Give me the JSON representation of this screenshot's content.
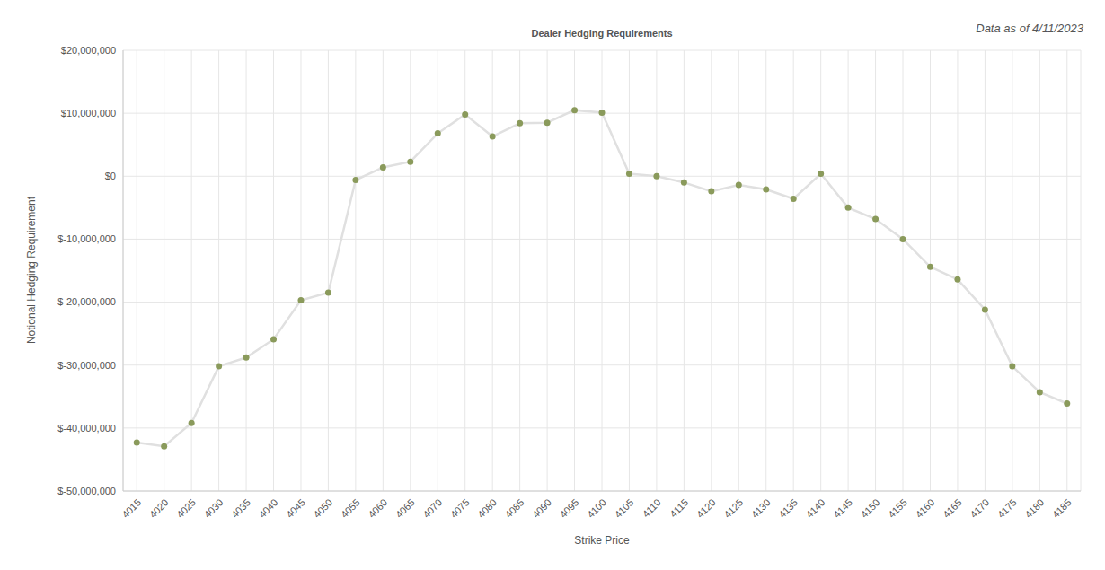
{
  "chart_data": {
    "type": "line",
    "title": "Dealer Hedging Requirements",
    "annotation": "Data as of 4/11/2023",
    "x_label": "Strike Price",
    "y_label": "Notional Hedging Requirement",
    "x": [
      4015,
      4020,
      4025,
      4030,
      4035,
      4040,
      4045,
      4050,
      4055,
      4060,
      4065,
      4070,
      4075,
      4080,
      4085,
      4090,
      4095,
      4100,
      4105,
      4110,
      4115,
      4120,
      4125,
      4130,
      4135,
      4140,
      4145,
      4150,
      4155,
      4160,
      4165,
      4170,
      4175,
      4180,
      4185
    ],
    "series": [
      {
        "name": "Notional Hedging Requirement",
        "color": "#8a9a5b",
        "values": [
          -42300000,
          -42900000,
          -39200000,
          -30200000,
          -28800000,
          -25900000,
          -19700000,
          -18500000,
          -600000,
          1400000,
          2300000,
          6800000,
          9800000,
          6300000,
          8400000,
          8500000,
          10500000,
          10100000,
          400000,
          0,
          -1000000,
          -2400000,
          -1400000,
          -2100000,
          -3600000,
          400000,
          -5000000,
          -6800000,
          -10000000,
          -14400000,
          -16400000,
          -21200000,
          -30200000,
          -34300000,
          -36100000
        ]
      }
    ],
    "xlim": [
      4012.5,
      4187.5
    ],
    "xticks": [
      4015,
      4020,
      4025,
      4030,
      4035,
      4040,
      4045,
      4050,
      4055,
      4060,
      4065,
      4070,
      4075,
      4080,
      4085,
      4090,
      4095,
      4100,
      4105,
      4110,
      4115,
      4120,
      4125,
      4130,
      4135,
      4140,
      4145,
      4150,
      4155,
      4160,
      4165,
      4170,
      4175,
      4180,
      4185
    ],
    "ylim": [
      -50000000,
      20000000
    ],
    "yticks": [
      {
        "value": -50000000,
        "label": "$-50,000,000"
      },
      {
        "value": -40000000,
        "label": "$-40,000,000"
      },
      {
        "value": -30000000,
        "label": "$-30,000,000"
      },
      {
        "value": -20000000,
        "label": "$-20,000,000"
      },
      {
        "value": -10000000,
        "label": "$-10,000,000"
      },
      {
        "value": 0,
        "label": "$0"
      },
      {
        "value": 10000000,
        "label": "$10,000,000"
      },
      {
        "value": 20000000,
        "label": "$20,000,000"
      }
    ],
    "grid": true,
    "marker": "circle"
  }
}
